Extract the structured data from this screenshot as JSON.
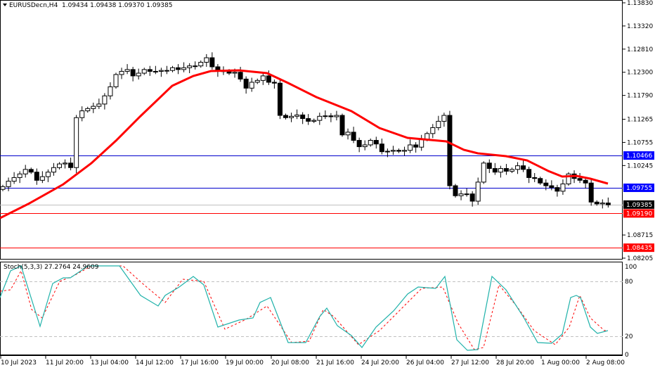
{
  "header": {
    "symbol": "EURUSDecn,H4",
    "ohlc": "1.09434 1.09438 1.09370 1.09385",
    "title_full": "EURUSDecn,H4  1.09434 1.09438 1.09370 1.09385"
  },
  "indicator": {
    "label": "Stoch(5,3,3) 27.2764 24.9609",
    "main_value": 27.2764,
    "signal_value": 24.9609
  },
  "colors": {
    "ma": "#ff0000",
    "blue_level": "#0000cc",
    "red_level": "#ff0000",
    "current_price": "#000000",
    "stoch_main": "#20b2aa",
    "stoch_signal": "#ff0000",
    "grid_dash": "#c0c0c0"
  },
  "chart_data": [
    {
      "type": "candlestick",
      "title": "EURUSDecn,H4",
      "ylim": [
        1.082,
        1.1383
      ],
      "y_ticks": [
        "1.13830",
        "1.13320",
        "1.12810",
        "1.12300",
        "1.11790",
        "1.11265",
        "1.10755",
        "1.10245",
        "1.08715",
        "1.08205"
      ],
      "price_labels": [
        {
          "value": "1.10466",
          "color": "#0000ff",
          "kind": "horizontal-line"
        },
        {
          "value": "1.09755",
          "color": "#0000ff",
          "kind": "horizontal-line"
        },
        {
          "value": "1.09385",
          "color": "#000000",
          "kind": "current-price"
        },
        {
          "value": "1.09190",
          "color": "#ff0000",
          "kind": "horizontal-line"
        },
        {
          "value": "1.08435",
          "color": "#ff0000",
          "kind": "horizontal-line"
        }
      ],
      "x_ticks": [
        "10 Jul 2023",
        "11 Jul 20:00",
        "13 Jul 04:00",
        "14 Jul 12:00",
        "17 Jul 16:00",
        "19 Jul 00:00",
        "20 Jul 08:00",
        "21 Jul 16:00",
        "24 Jul 20:00",
        "26 Jul 04:00",
        "27 Jul 12:00",
        "28 Jul 20:00",
        "1 Aug 00:00",
        "2 Aug 08:00"
      ],
      "series": [
        {
          "name": "Moving Average",
          "color": "#ff0000"
        }
      ],
      "ohlc_last": {
        "open": 1.09434,
        "high": 1.09438,
        "low": 1.0937,
        "close": 1.09385
      }
    },
    {
      "type": "line",
      "title": "Stoch(5,3,3)",
      "ylim": [
        0,
        100
      ],
      "y_ticks": [
        "100",
        "80",
        "20",
        "0"
      ],
      "levels": [
        80,
        20
      ],
      "series": [
        {
          "name": "%K",
          "color": "#20b2aa",
          "last": 27.2764
        },
        {
          "name": "%D",
          "color": "#ff0000",
          "style": "dashed",
          "last": 24.9609
        }
      ]
    }
  ]
}
